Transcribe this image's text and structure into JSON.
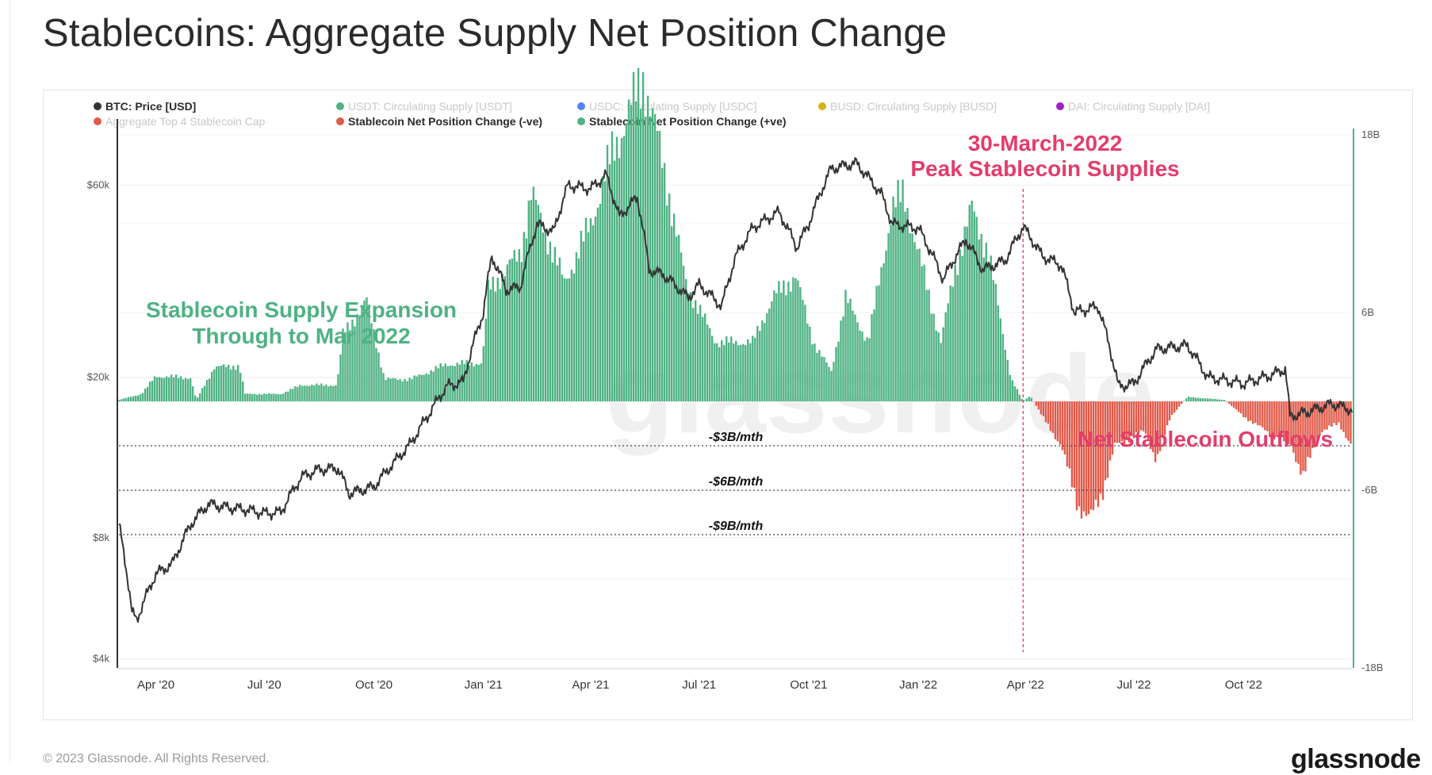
{
  "title": "Stablecoins: Aggregate Supply Net Position Change",
  "footer": {
    "copyright": "© 2023 Glassnode. All Rights Reserved.",
    "logo": "glassnode"
  },
  "watermark": "glassnode",
  "legend": [
    {
      "label": "BTC: Price [USD]",
      "color": "#333333",
      "active": true
    },
    {
      "label": "USDT: Circulating Supply [USDT]",
      "color": "#4fb283",
      "active": false
    },
    {
      "label": "USDC: Circulating Supply [USDC]",
      "color": "#4f86f7",
      "active": false
    },
    {
      "label": "BUSD: Circulating Supply [BUSD]",
      "color": "#d4b21c",
      "active": false
    },
    {
      "label": "DAI: Circulating Supply [DAI]",
      "color": "#a11fc7",
      "active": false
    },
    {
      "label": "Aggregate Top 4 Stablecoin Cap",
      "color": "#e25a4a",
      "active": false
    },
    {
      "label": "Stablecoin Net Position Change (-ve)",
      "color": "#e25a4a",
      "active": true
    },
    {
      "label": "Stablecoin Net Position Change (+ve)",
      "color": "#4fb283",
      "active": true
    }
  ],
  "annotations": {
    "expansion": [
      "Stablecoin Supply Expansion",
      "Through to Mar 2022"
    ],
    "peak": [
      "30-March-2022",
      "Peak Stablecoin Supplies"
    ],
    "outflows": "Net Stablecoin Outflows",
    "ref_lines": [
      "-$3B/mth",
      "-$6B/mth",
      "-$9B/mth"
    ]
  },
  "chart_data": {
    "type": "bar",
    "x_range": [
      "2020-03-01",
      "2022-12-31"
    ],
    "x_ticks": [
      "Apr '20",
      "Jul '20",
      "Oct '20",
      "Jan '21",
      "Apr '21",
      "Jul '21",
      "Oct '21",
      "Jan '22",
      "Apr '22",
      "Jul '22",
      "Oct '22"
    ],
    "left_axis": {
      "scale": "log",
      "ticks": [
        "$4k",
        "$8k",
        "$20k",
        "$60k"
      ]
    },
    "right_axis": {
      "scale": "linear",
      "ticks": [
        "18B",
        "6B",
        "-6B",
        "-18B"
      ],
      "ylim": [
        -18,
        18
      ]
    },
    "ref_lines_B": [
      -3,
      -6,
      -9
    ],
    "peak_date": "2022-03-30",
    "btc_price": {
      "name": "BTC: Price [USD]",
      "points": [
        [
          "2020-03-01",
          8600
        ],
        [
          "2020-03-12",
          5200
        ],
        [
          "2020-03-16",
          5000
        ],
        [
          "2020-04-01",
          6500
        ],
        [
          "2020-04-15",
          6900
        ],
        [
          "2020-05-01",
          8700
        ],
        [
          "2020-05-15",
          9700
        ],
        [
          "2020-06-01",
          9500
        ],
        [
          "2020-06-15",
          9400
        ],
        [
          "2020-07-01",
          9200
        ],
        [
          "2020-07-15",
          9250
        ],
        [
          "2020-08-01",
          11300
        ],
        [
          "2020-08-15",
          11800
        ],
        [
          "2020-09-01",
          11900
        ],
        [
          "2020-09-10",
          10300
        ],
        [
          "2020-10-01",
          10700
        ],
        [
          "2020-10-20",
          12500
        ],
        [
          "2020-11-01",
          13700
        ],
        [
          "2020-11-15",
          16000
        ],
        [
          "2020-12-01",
          19000
        ],
        [
          "2020-12-15",
          19500
        ],
        [
          "2021-01-01",
          29000
        ],
        [
          "2021-01-08",
          40000
        ],
        [
          "2021-01-20",
          33000
        ],
        [
          "2021-02-01",
          33500
        ],
        [
          "2021-02-15",
          48000
        ],
        [
          "2021-03-01",
          46000
        ],
        [
          "2021-03-13",
          60000
        ],
        [
          "2021-04-01",
          58800
        ],
        [
          "2021-04-14",
          63500
        ],
        [
          "2021-04-25",
          50000
        ],
        [
          "2021-05-10",
          56000
        ],
        [
          "2021-05-20",
          37000
        ],
        [
          "2021-06-01",
          36000
        ],
        [
          "2021-06-22",
          31500
        ],
        [
          "2021-07-01",
          34000
        ],
        [
          "2021-07-20",
          30000
        ],
        [
          "2021-08-01",
          40000
        ],
        [
          "2021-08-15",
          47000
        ],
        [
          "2021-09-06",
          51500
        ],
        [
          "2021-09-21",
          42000
        ],
        [
          "2021-10-01",
          48000
        ],
        [
          "2021-10-20",
          66000
        ],
        [
          "2021-11-10",
          68000
        ],
        [
          "2021-12-01",
          57000
        ],
        [
          "2021-12-10",
          48000
        ],
        [
          "2022-01-01",
          47000
        ],
        [
          "2022-01-22",
          35000
        ],
        [
          "2022-02-10",
          44000
        ],
        [
          "2022-02-24",
          37000
        ],
        [
          "2022-03-15",
          39000
        ],
        [
          "2022-03-30",
          47300
        ],
        [
          "2022-04-15",
          40000
        ],
        [
          "2022-05-01",
          38000
        ],
        [
          "2022-05-12",
          29000
        ],
        [
          "2022-06-01",
          30000
        ],
        [
          "2022-06-18",
          19000
        ],
        [
          "2022-07-01",
          19300
        ],
        [
          "2022-07-20",
          23500
        ],
        [
          "2022-08-15",
          24000
        ],
        [
          "2022-09-01",
          20000
        ],
        [
          "2022-09-15",
          19700
        ],
        [
          "2022-10-01",
          19300
        ],
        [
          "2022-10-25",
          20300
        ],
        [
          "2022-11-05",
          21000
        ],
        [
          "2022-11-09",
          16000
        ],
        [
          "2022-11-20",
          16300
        ],
        [
          "2022-12-15",
          17200
        ],
        [
          "2022-12-31",
          16600
        ]
      ]
    },
    "net_position_change_B": {
      "name": "Stablecoin Net Position Change",
      "points": [
        [
          "2020-03-01",
          0.1
        ],
        [
          "2020-03-20",
          0.5
        ],
        [
          "2020-04-01",
          1.7
        ],
        [
          "2020-04-30",
          1.6
        ],
        [
          "2020-05-05",
          0.1
        ],
        [
          "2020-05-20",
          2.3
        ],
        [
          "2020-06-10",
          2.4
        ],
        [
          "2020-06-15",
          0.5
        ],
        [
          "2020-07-15",
          0.5
        ],
        [
          "2020-08-01",
          1.1
        ],
        [
          "2020-08-31",
          1.1
        ],
        [
          "2020-09-05",
          4.5
        ],
        [
          "2020-09-25",
          6.8
        ],
        [
          "2020-10-10",
          1.5
        ],
        [
          "2020-11-01",
          1.5
        ],
        [
          "2020-12-01",
          2.5
        ],
        [
          "2020-12-31",
          2.6
        ],
        [
          "2021-01-05",
          7.5
        ],
        [
          "2021-02-01",
          10
        ],
        [
          "2021-02-10",
          14
        ],
        [
          "2021-03-01",
          10
        ],
        [
          "2021-03-10",
          8
        ],
        [
          "2021-04-01",
          12
        ],
        [
          "2021-04-20",
          17
        ],
        [
          "2021-05-01",
          19
        ],
        [
          "2021-05-15",
          22
        ],
        [
          "2021-06-01",
          16
        ],
        [
          "2021-06-20",
          8
        ],
        [
          "2021-07-15",
          4
        ],
        [
          "2021-08-15",
          4
        ],
        [
          "2021-09-01",
          7
        ],
        [
          "2021-09-20",
          8.5
        ],
        [
          "2021-10-05",
          4
        ],
        [
          "2021-10-20",
          2
        ],
        [
          "2021-11-01",
          7
        ],
        [
          "2021-11-20",
          4
        ],
        [
          "2021-12-10",
          13
        ],
        [
          "2021-12-20",
          14
        ],
        [
          "2022-01-01",
          10
        ],
        [
          "2022-01-20",
          4
        ],
        [
          "2022-02-01",
          9
        ],
        [
          "2022-02-15",
          13
        ],
        [
          "2022-03-01",
          10
        ],
        [
          "2022-03-20",
          1.5
        ],
        [
          "2022-03-30",
          0
        ],
        [
          "2022-04-05",
          0.4
        ],
        [
          "2022-04-15",
          -1
        ],
        [
          "2022-05-01",
          -3
        ],
        [
          "2022-05-15",
          -7
        ],
        [
          "2022-05-25",
          -8
        ],
        [
          "2022-06-05",
          -6
        ],
        [
          "2022-06-15",
          -3
        ],
        [
          "2022-07-10",
          -2
        ],
        [
          "2022-07-20",
          -4
        ],
        [
          "2022-08-01",
          -1
        ],
        [
          "2022-08-15",
          0.3
        ],
        [
          "2022-09-15",
          0.1
        ],
        [
          "2022-10-01",
          -1
        ],
        [
          "2022-10-20",
          -2
        ],
        [
          "2022-11-10",
          -3
        ],
        [
          "2022-11-20",
          -5
        ],
        [
          "2022-12-05",
          -2
        ],
        [
          "2022-12-20",
          -1.5
        ],
        [
          "2022-12-31",
          -3
        ]
      ]
    }
  },
  "colors": {
    "positive": "#4fb283",
    "negative": "#e25a4a",
    "price": "#333333",
    "peak_line": "#e23d6b",
    "right_axis_line": "#4fb283"
  }
}
